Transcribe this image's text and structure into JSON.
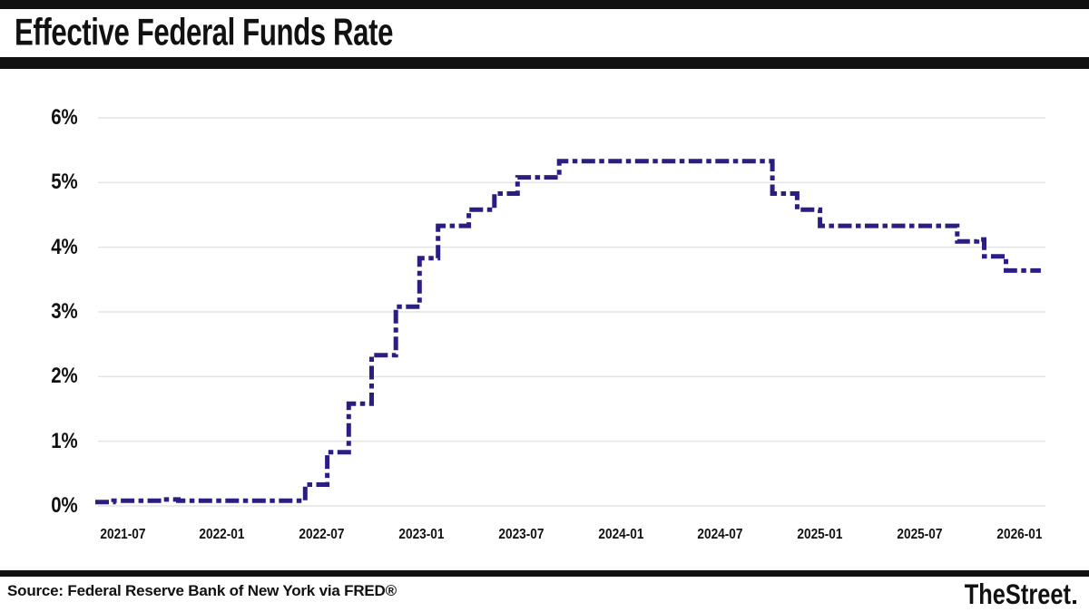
{
  "header": {
    "title": "Effective Federal Funds Rate"
  },
  "footer": {
    "source": "Source: Federal Reserve Bank of New York via FRED®",
    "brand": "TheStreet"
  },
  "chart_data": {
    "type": "line",
    "subtype": "step-after",
    "title": "Effective Federal Funds Rate",
    "xlabel": "",
    "ylabel": "",
    "grid": true,
    "legend": "none",
    "line_color": "#2a1e82",
    "grid_color": "#e4e4e4",
    "line_dash": "dashed",
    "ylim": [
      0,
      6
    ],
    "y_axis": {
      "ticks": [
        {
          "label": "6%",
          "value": 6
        },
        {
          "label": "5%",
          "value": 5
        },
        {
          "label": "4%",
          "value": 4
        },
        {
          "label": "3%",
          "value": 3
        },
        {
          "label": "2%",
          "value": 2
        },
        {
          "label": "1%",
          "value": 1
        },
        {
          "label": "0%",
          "value": 0
        }
      ]
    },
    "x_axis": {
      "ticks": [
        {
          "label": "2021-07"
        },
        {
          "label": "2022-01"
        },
        {
          "label": "2022-07"
        },
        {
          "label": "2023-01"
        },
        {
          "label": "2023-07"
        },
        {
          "label": "2024-01"
        },
        {
          "label": "2024-07"
        },
        {
          "label": "2025-01"
        },
        {
          "label": "2025-07"
        },
        {
          "label": "2026-01"
        }
      ],
      "range": [
        "2021-05-12",
        "2026-02-10"
      ]
    },
    "series": [
      {
        "name": "Effective Federal Funds Rate (%)",
        "points": [
          [
            "2021-05-12",
            0.06
          ],
          [
            "2021-06-15",
            0.08
          ],
          [
            "2021-09-15",
            0.1
          ],
          [
            "2021-10-12",
            0.08
          ],
          [
            "2022-06-01",
            0.33
          ],
          [
            "2022-07-11",
            0.83
          ],
          [
            "2022-08-20",
            1.58
          ],
          [
            "2022-10-01",
            2.33
          ],
          [
            "2022-11-15",
            3.08
          ],
          [
            "2022-12-28",
            3.83
          ],
          [
            "2023-02-01",
            4.33
          ],
          [
            "2023-03-27",
            4.58
          ],
          [
            "2023-05-13",
            4.83
          ],
          [
            "2023-06-25",
            5.08
          ],
          [
            "2023-09-10",
            5.33
          ],
          [
            "2024-10-05",
            4.83
          ],
          [
            "2024-11-20",
            4.58
          ],
          [
            "2025-01-01",
            4.33
          ],
          [
            "2025-09-09",
            4.09
          ],
          [
            "2025-10-15",
            4.12
          ],
          [
            "2025-10-28",
            3.86
          ],
          [
            "2025-12-07",
            3.64
          ],
          [
            "2026-02-10",
            3.64
          ]
        ]
      }
    ]
  }
}
